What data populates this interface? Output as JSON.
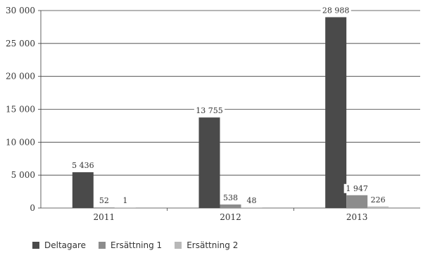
{
  "chart_data": {
    "type": "bar",
    "categories": [
      "2011",
      "2012",
      "2013"
    ],
    "series": [
      {
        "name": "Deltagare",
        "values": [
          5436,
          13755,
          28988
        ],
        "labels": [
          "5 436",
          "13 755",
          "28 988"
        ],
        "color": "#4a4a4a"
      },
      {
        "name": "Ersättning 1",
        "values": [
          52,
          538,
          1947
        ],
        "labels": [
          "52",
          "538",
          "1 947"
        ],
        "color": "#8c8c8c"
      },
      {
        "name": "Ersättning 2",
        "values": [
          1,
          48,
          226
        ],
        "labels": [
          "1",
          "48",
          "226"
        ],
        "color": "#b8b8b8"
      }
    ],
    "yticks": [
      "0",
      "5 000",
      "10 000",
      "15 000",
      "20 000",
      "25 000",
      "30 000"
    ],
    "ylim": [
      0,
      30000
    ],
    "grid": true,
    "legend": "bottom-left",
    "title": "",
    "xlabel": "",
    "ylabel": ""
  }
}
